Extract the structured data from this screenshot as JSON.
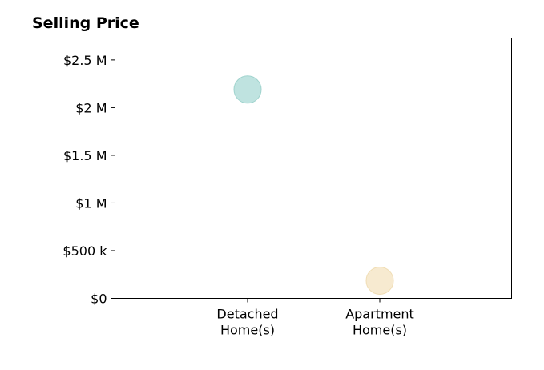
{
  "chart_data": {
    "type": "scatter",
    "title": "Selling Price",
    "xlabel": "",
    "ylabel": "",
    "categories": [
      [
        "Detached",
        "Home(s)"
      ],
      [
        "Apartment",
        "Home(s)"
      ]
    ],
    "values": [
      2190000,
      185000
    ],
    "point_colors": [
      "#bfe3e0",
      "#f7ead0"
    ],
    "point_edge_colors": [
      "#9fd3cd",
      "#f0ddb4"
    ],
    "ylim": [
      0,
      2730000
    ],
    "yticks": [
      0,
      500000,
      1000000,
      1500000,
      2000000,
      2500000
    ],
    "ytick_labels": [
      "$0",
      "$500 k",
      "$1 M",
      "$1.5 M",
      "$2 M",
      "$2.5 M"
    ],
    "grid": false,
    "legend": "none"
  }
}
